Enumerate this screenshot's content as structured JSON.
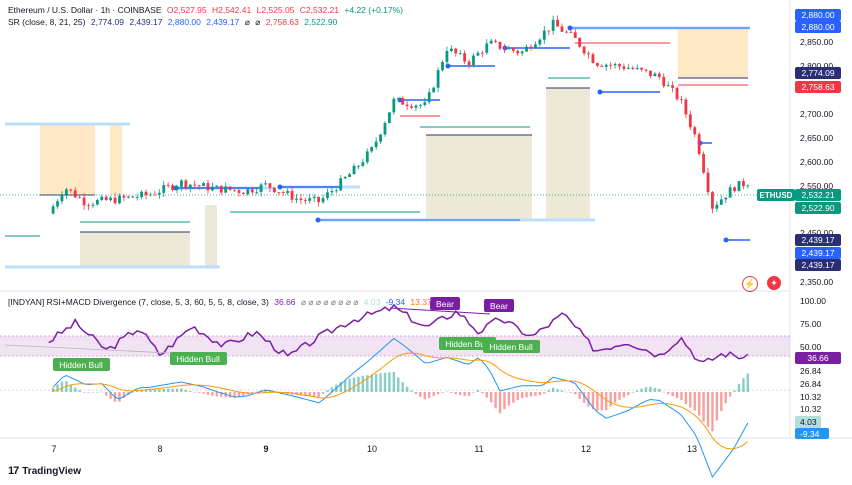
{
  "legend": {
    "symbol": "Ethereum / U.S. Dollar · 1h · COINBASE",
    "o": "O2,527.95",
    "h": "H2,542.41",
    "l": "L2,525.05",
    "c": "C2,532.21",
    "chg": "+4.22 (+0.17%)",
    "sr_name": "SR (close, 8, 21, 25)",
    "sr_vals": [
      "2,774.09",
      "2,439.17",
      "2,880.00",
      "2,439.17",
      "⌀",
      "⌀",
      "2,758.63",
      "2,522.90"
    ],
    "ind_name": "[INDYAN] RSI+MACD Divergence (7, close, 5, 3, 60, 5, 5, 8, close, 3)",
    "ind_val": "36.66",
    "ind_rest": "⌀ ⌀ ⌀ ⌀ ⌀ ⌀ ⌀ ⌀",
    "ind_vals2": [
      "4.03",
      "-9.34",
      "13.37"
    ]
  },
  "price_axis": {
    "ticks": [
      "2,850.00",
      "2,800.00",
      "2,750.00",
      "2,700.00",
      "2,650.00",
      "2,600.00",
      "2,550.00",
      "2,450.00",
      "2,400.00",
      "2,350.00"
    ],
    "badges": [
      {
        "text": "2,880.00",
        "color": "#2962ff"
      },
      {
        "text": "2,880.00",
        "color": "#2962ff"
      },
      {
        "text": "2,774.09",
        "color": "#2a2e75"
      },
      {
        "text": "2,758.63",
        "color": "#f23645"
      },
      {
        "text": "ETHUSD",
        "color": "#089981"
      },
      {
        "text": "2,532.21",
        "color": "#089981"
      },
      {
        "text": "2,522.90",
        "color": "#089981"
      },
      {
        "text": "2,439.17",
        "color": "#2a2e75"
      },
      {
        "text": "2,439.17",
        "color": "#2962ff"
      },
      {
        "text": "2,439.17",
        "color": "#2a2e75"
      }
    ]
  },
  "osc_axis": {
    "ticks": [
      "100.00",
      "75.00",
      "50.00"
    ],
    "badges": [
      {
        "text": "36.66",
        "color": "#7b1fa2"
      },
      {
        "text": "26.84",
        "color": "#ffffff"
      },
      {
        "text": "26.84",
        "color": "#ffffff"
      },
      {
        "text": "10.32",
        "color": "#ffffff"
      },
      {
        "text": "10.32",
        "color": "#ffffff"
      },
      {
        "text": "4.03",
        "color": "#b2dfdb"
      },
      {
        "text": "-9.34",
        "color": "#2196f3"
      }
    ]
  },
  "time_axis": [
    "7",
    "8",
    "9",
    "10",
    "11",
    "12",
    "13"
  ],
  "signals": {
    "hidden_bull": [
      "Hidden Bull",
      "Hidden Bull",
      "Hidden Bull",
      "Hidden Bull"
    ],
    "bear": [
      "Bear",
      "Bear"
    ]
  },
  "branding": "TradingView",
  "colors": {
    "up": "#089981",
    "down": "#f23645",
    "support": "#2962ff",
    "rsi": "#7b1fa2",
    "macd": "#2196f3",
    "signal": "#ff9800"
  },
  "chart_data": {
    "type": "line",
    "title": "Ethereum / U.S. Dollar · 1h · COINBASE",
    "x_ticks": [
      "7",
      "8",
      "9",
      "10",
      "11",
      "12",
      "13"
    ],
    "ylim": [
      2330,
      2905
    ],
    "price_close_path": [
      {
        "x": 6.95,
        "y": 2465
      },
      {
        "x": 7.1,
        "y": 2520
      },
      {
        "x": 7.3,
        "y": 2488
      },
      {
        "x": 7.6,
        "y": 2495
      },
      {
        "x": 7.9,
        "y": 2505
      },
      {
        "x": 8.2,
        "y": 2530
      },
      {
        "x": 8.5,
        "y": 2518
      },
      {
        "x": 8.8,
        "y": 2512
      },
      {
        "x": 9.0,
        "y": 2525
      },
      {
        "x": 9.3,
        "y": 2495
      },
      {
        "x": 9.5,
        "y": 2490
      },
      {
        "x": 9.8,
        "y": 2550
      },
      {
        "x": 10.0,
        "y": 2600
      },
      {
        "x": 10.2,
        "y": 2700
      },
      {
        "x": 10.5,
        "y": 2690
      },
      {
        "x": 10.7,
        "y": 2810
      },
      {
        "x": 10.9,
        "y": 2780
      },
      {
        "x": 11.1,
        "y": 2820
      },
      {
        "x": 11.4,
        "y": 2800
      },
      {
        "x": 11.7,
        "y": 2860
      },
      {
        "x": 11.9,
        "y": 2830
      },
      {
        "x": 12.1,
        "y": 2780
      },
      {
        "x": 12.4,
        "y": 2770
      },
      {
        "x": 12.7,
        "y": 2750
      },
      {
        "x": 12.9,
        "y": 2700
      },
      {
        "x": 13.05,
        "y": 2620
      },
      {
        "x": 13.2,
        "y": 2480
      },
      {
        "x": 13.4,
        "y": 2520
      },
      {
        "x": 13.55,
        "y": 2532
      }
    ],
    "rsi_ylim": [
      0,
      100
    ],
    "rsi_path": [
      {
        "x": 6.95,
        "y": 55
      },
      {
        "x": 7.2,
        "y": 75
      },
      {
        "x": 7.5,
        "y": 45
      },
      {
        "x": 7.8,
        "y": 70
      },
      {
        "x": 8.0,
        "y": 40
      },
      {
        "x": 8.3,
        "y": 72
      },
      {
        "x": 8.6,
        "y": 50
      },
      {
        "x": 8.9,
        "y": 65
      },
      {
        "x": 9.2,
        "y": 38
      },
      {
        "x": 9.5,
        "y": 60
      },
      {
        "x": 9.8,
        "y": 78
      },
      {
        "x": 10.2,
        "y": 92
      },
      {
        "x": 10.5,
        "y": 70
      },
      {
        "x": 10.8,
        "y": 88
      },
      {
        "x": 11.0,
        "y": 65
      },
      {
        "x": 11.2,
        "y": 80
      },
      {
        "x": 11.5,
        "y": 60
      },
      {
        "x": 11.8,
        "y": 85
      },
      {
        "x": 12.1,
        "y": 45
      },
      {
        "x": 12.4,
        "y": 55
      },
      {
        "x": 12.7,
        "y": 40
      },
      {
        "x": 12.9,
        "y": 60
      },
      {
        "x": 13.1,
        "y": 30
      },
      {
        "x": 13.3,
        "y": 42
      },
      {
        "x": 13.55,
        "y": 36.66
      }
    ]
  }
}
